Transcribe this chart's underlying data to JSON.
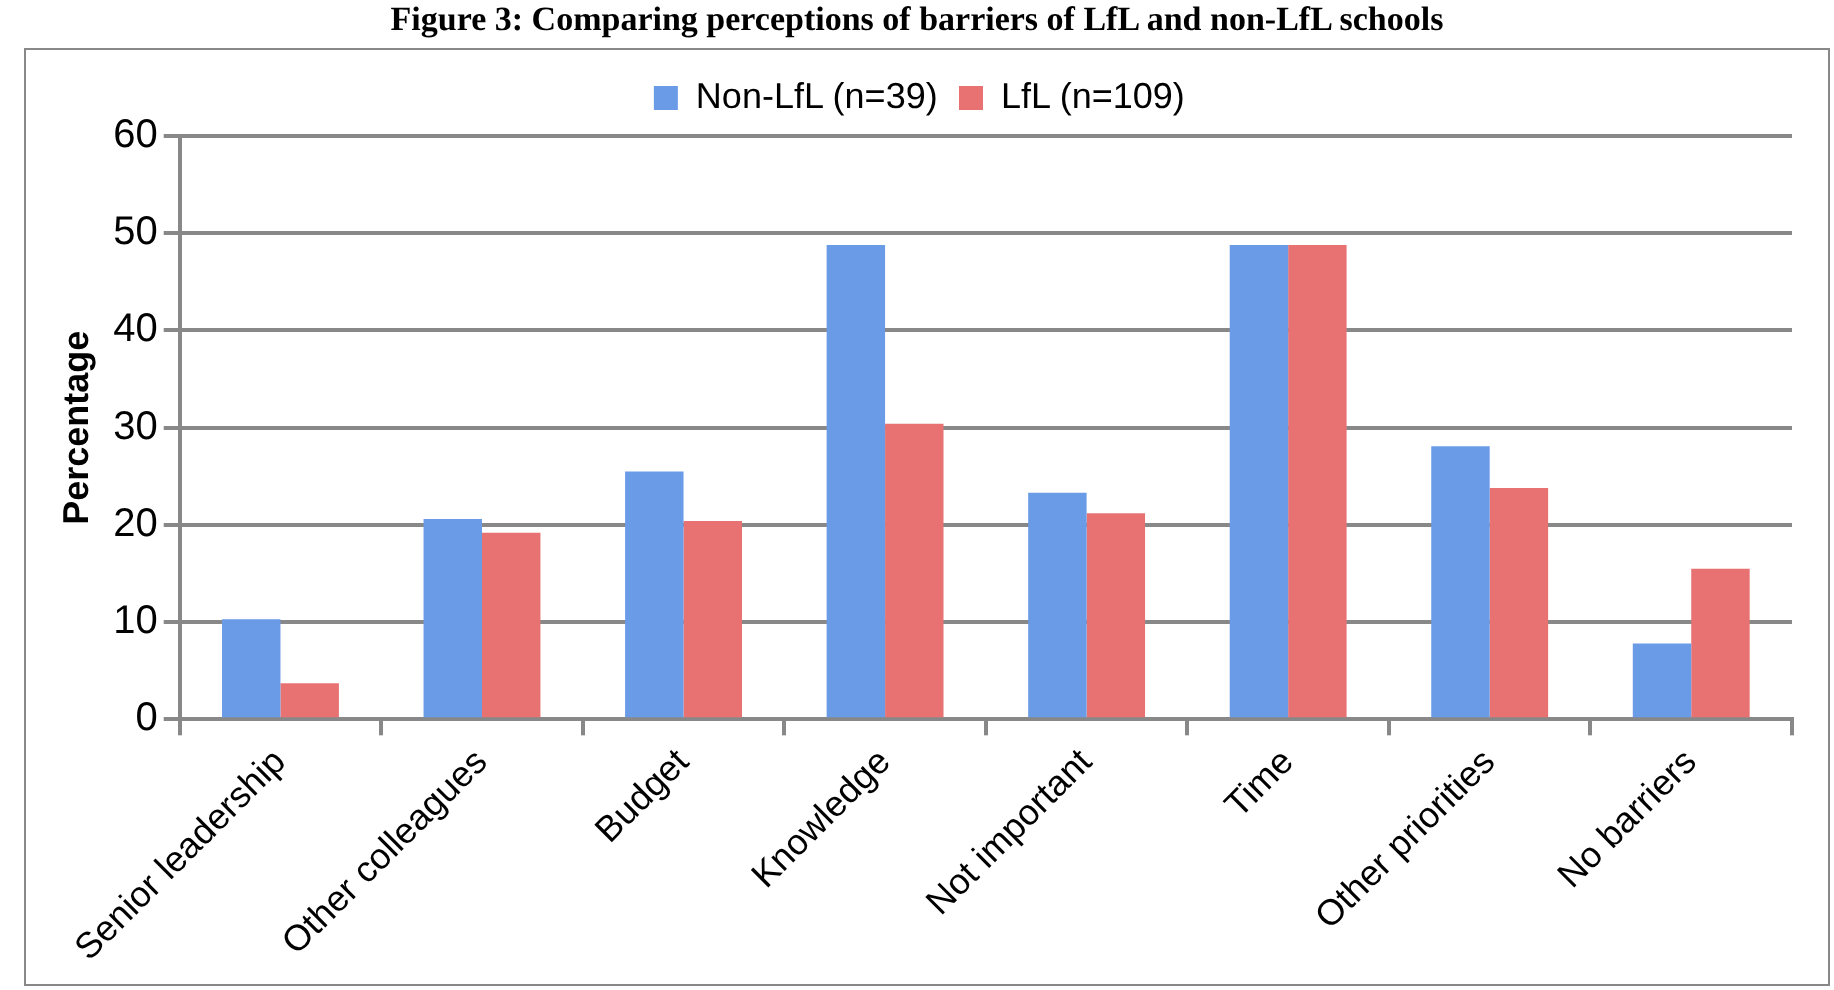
{
  "chart_data": {
    "type": "bar",
    "title": "Figure 3: Comparing perceptions of barriers of LfL and non-LfL schools",
    "ylabel": "Percentage",
    "categories": [
      "Senior leadership",
      "Other colleagues",
      "Budget",
      "Knowledge",
      "Not important",
      "Time",
      "Other priorities",
      "No barriers"
    ],
    "series": [
      {
        "name": "Non-LfL (n=39)",
        "color": "#6a9be6",
        "values": [
          10.3,
          20.6,
          25.5,
          48.8,
          23.3,
          48.8,
          28.1,
          7.8
        ]
      },
      {
        "name": "LfL (n=109)",
        "color": "#e87272",
        "values": [
          3.7,
          19.2,
          20.4,
          30.4,
          21.2,
          48.8,
          23.8,
          15.5
        ]
      }
    ],
    "ylim": [
      0,
      60
    ],
    "yticks": [
      0,
      10,
      20,
      30,
      40,
      50,
      60
    ],
    "grid": "y",
    "legend": "top"
  }
}
